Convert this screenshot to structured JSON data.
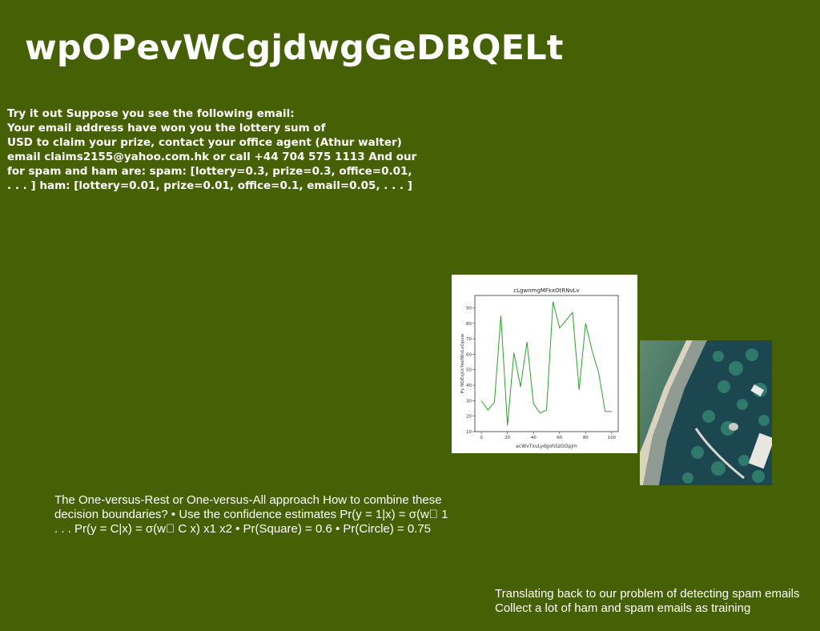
{
  "title": "wpOPevWCgjdwgGeDBQELt",
  "email_block": {
    "lines": [
      "Try it out Suppose you see the following email:",
      "Your email address have won you the lottery sum of",
      "USD to claim your prize, contact your office agent (Athur walter)",
      "email claims2155@yahoo.com.hk or call +44 704 575 1113 And our",
      "for spam and ham are: spam: [lottery=0.3, prize=0.3, office=0.01,",
      ". . . ] ham: [lottery=0.01, prize=0.01, office=0.1, email=0.05, . . . ]"
    ]
  },
  "ovr_block": {
    "lines": [
      "The One-versus-Rest or One-versus-All approach How to combine these",
      "decision boundaries? • Use the confidence estimates Pr(y = 1|x) = σ(w\u0000 1",
      ". . . Pr(y = C|x) = σ(w\u0000 C x) x1 x2 • Pr(Square) = 0.6 • Pr(Circle) = 0.75"
    ]
  },
  "bottom_block": {
    "lines": [
      "Translating back to our problem of detecting spam emails",
      "Collect a lot of ham and spam emails as training"
    ]
  },
  "chart_data": {
    "type": "line",
    "title": "cLgwnmgMFkxOtRNvLv",
    "xlabel": "acWvTxuLydgohSzGOpJm",
    "ylabel": "Py NGExjUcYeofWxLvQpuw",
    "xlim": [
      -5,
      105
    ],
    "ylim": [
      10,
      98
    ],
    "x_ticks": [
      0,
      20,
      40,
      60,
      80,
      100
    ],
    "y_ticks": [
      10,
      20,
      30,
      40,
      50,
      60,
      70,
      80,
      90
    ],
    "grid": false,
    "line_color": "#2ca02c",
    "series": [
      {
        "x": [
          0,
          5,
          10,
          15,
          20,
          25,
          30,
          35,
          40,
          45,
          50,
          55,
          60,
          65,
          70,
          75,
          80,
          85,
          90,
          95,
          100
        ],
        "values": [
          30,
          24,
          29,
          85,
          14,
          61,
          39,
          68,
          28,
          22,
          24,
          94,
          77,
          82,
          87,
          37,
          80,
          62,
          48,
          23,
          23
        ]
      }
    ]
  },
  "photo": {
    "alt_icon": "aerial-coastline-photo"
  }
}
